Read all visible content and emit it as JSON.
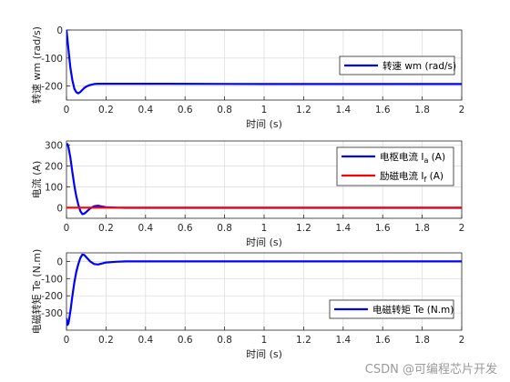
{
  "watermark": "CSDN @可编程芯片开发",
  "colors": {
    "blue": "#0000ff",
    "red": "#ff0000",
    "grid": "#dfdfdf",
    "axis": "#262626"
  },
  "chart_data": [
    {
      "type": "line",
      "xlabel": "时间 (s)",
      "ylabel": "转速 wm (rad/s)",
      "xlim": [
        0,
        2
      ],
      "ylim": [
        -250,
        0
      ],
      "xticks": [
        0,
        0.2,
        0.4,
        0.6,
        0.8,
        1,
        1.2,
        1.4,
        1.6,
        1.8,
        2
      ],
      "xticklabels": [
        "0",
        "0.2",
        "0.4",
        "0.6",
        "0.8",
        "1",
        "1.2",
        "1.4",
        "1.6",
        "1.8",
        "2"
      ],
      "yticks": [
        -200,
        -100,
        0
      ],
      "yticklabels": [
        "-200",
        "-100",
        "0"
      ],
      "grid": true,
      "legend_position": "center-right",
      "series": [
        {
          "name": "转速 wm (rad/s)",
          "color": "#0000ff",
          "x": [
            0,
            0.01,
            0.02,
            0.03,
            0.04,
            0.05,
            0.06,
            0.07,
            0.08,
            0.09,
            0.1,
            0.12,
            0.14,
            0.16,
            0.18,
            0.2,
            0.25,
            0.3,
            0.5,
            1,
            1.5,
            2
          ],
          "y": [
            0,
            -70,
            -135,
            -180,
            -210,
            -222,
            -226,
            -221,
            -214,
            -207,
            -202,
            -196,
            -193,
            -192,
            -192,
            -192,
            -192,
            -192,
            -192,
            -193,
            -193,
            -193
          ]
        }
      ]
    },
    {
      "type": "line",
      "xlabel": "时间 (s)",
      "ylabel": "电流 (A)",
      "xlim": [
        0,
        2
      ],
      "ylim": [
        -50,
        320
      ],
      "xticks": [
        0,
        0.2,
        0.4,
        0.6,
        0.8,
        1,
        1.2,
        1.4,
        1.6,
        1.8,
        2
      ],
      "xticklabels": [
        "0",
        "0.2",
        "0.4",
        "0.6",
        "0.8",
        "1",
        "1.2",
        "1.4",
        "1.6",
        "1.8",
        "2"
      ],
      "yticks": [
        0,
        100,
        200,
        300
      ],
      "yticklabels": [
        "0",
        "100",
        "200",
        "300"
      ],
      "grid": true,
      "legend_position": "top-right",
      "series": [
        {
          "name": "电枢电流 I",
          "subscript": "a",
          "unit": " (A)",
          "color": "#0000ff",
          "x": [
            0,
            0.005,
            0.01,
            0.02,
            0.03,
            0.04,
            0.05,
            0.06,
            0.07,
            0.08,
            0.09,
            0.1,
            0.12,
            0.14,
            0.16,
            0.18,
            0.2,
            0.25,
            0.3,
            0.5,
            1,
            2
          ],
          "y": [
            300,
            305,
            290,
            240,
            170,
            105,
            55,
            15,
            -15,
            -30,
            -28,
            -20,
            -3,
            8,
            10,
            6,
            3,
            1,
            0,
            0,
            0,
            0
          ]
        },
        {
          "name": "励磁电流 I",
          "subscript": "f",
          "unit": " (A)",
          "color": "#ff0000",
          "x": [
            0,
            2
          ],
          "y": [
            1,
            1
          ]
        }
      ]
    },
    {
      "type": "line",
      "xlabel": "时间 (s)",
      "ylabel": "电磁转矩 Te (N.m)",
      "xlim": [
        0,
        2
      ],
      "ylim": [
        -400,
        50
      ],
      "xticks": [
        0,
        0.2,
        0.4,
        0.6,
        0.8,
        1,
        1.2,
        1.4,
        1.6,
        1.8,
        2
      ],
      "xticklabels": [
        "0",
        "0.2",
        "0.4",
        "0.6",
        "0.8",
        "1",
        "1.2",
        "1.4",
        "1.6",
        "1.8",
        "2"
      ],
      "yticks": [
        -300,
        -200,
        -100,
        0
      ],
      "yticklabels": [
        "-300",
        "-200",
        "-100",
        "0"
      ],
      "grid": true,
      "legend_position": "bottom-right",
      "series": [
        {
          "name": "电磁转矩 Te (N.m)",
          "color": "#0000ff",
          "x": [
            0,
            0.005,
            0.01,
            0.02,
            0.03,
            0.04,
            0.05,
            0.06,
            0.07,
            0.08,
            0.09,
            0.1,
            0.12,
            0.14,
            0.16,
            0.18,
            0.2,
            0.25,
            0.3,
            0.5,
            1,
            2
          ],
          "y": [
            -330,
            -370,
            -360,
            -290,
            -200,
            -120,
            -60,
            -15,
            20,
            40,
            38,
            25,
            0,
            -15,
            -18,
            -12,
            -6,
            -2,
            0,
            0,
            0,
            0
          ]
        }
      ]
    }
  ]
}
